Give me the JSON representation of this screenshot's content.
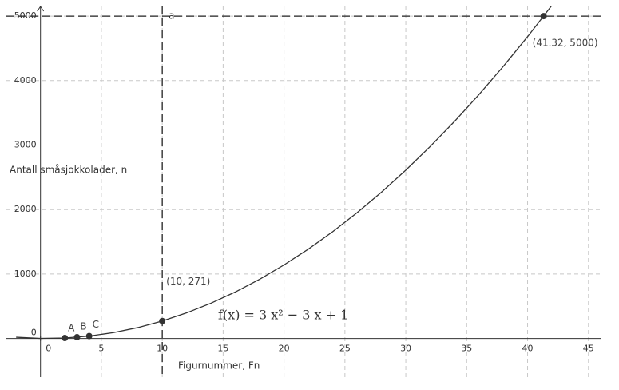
{
  "chart_data": {
    "type": "line",
    "x_label": "Figurnummer,  Fn",
    "y_label": "Antall småsjokkolader, n",
    "formula": "f(x) = 3 x² − 3 x + 1",
    "xlim": [
      -2.8,
      46
    ],
    "ylim": [
      -600,
      5150
    ],
    "xticks": [
      0,
      5,
      10,
      15,
      20,
      25,
      30,
      35,
      40,
      45
    ],
    "yticks": [
      0,
      1000,
      2000,
      3000,
      4000,
      5000
    ],
    "grid": true,
    "x": [
      -2,
      0,
      2,
      4,
      6,
      8,
      10,
      12,
      14,
      16,
      18,
      20,
      22,
      24,
      26,
      28,
      30,
      32,
      34,
      36,
      38,
      40,
      42
    ],
    "series": [
      {
        "color": "#333333",
        "values": [
          19,
          1,
          7,
          37,
          91,
          169,
          271,
          397,
          547,
          721,
          919,
          1141,
          1387,
          1657,
          1951,
          2269,
          2611,
          2977,
          3367,
          3781,
          4219,
          4681,
          5167
        ]
      }
    ],
    "points": [
      {
        "name": "A",
        "x": 2,
        "y": 7
      },
      {
        "name": "B",
        "x": 3,
        "y": 19
      },
      {
        "name": "C",
        "x": 4,
        "y": 37
      },
      {
        "x": 10,
        "y": 271,
        "label": "(10, 271)"
      },
      {
        "x": 41.32,
        "y": 5000,
        "label": "(41.32, 5000)"
      }
    ],
    "vlines": [
      {
        "x": 10,
        "label": "a"
      }
    ],
    "hlines": [
      {
        "y": 5000
      }
    ]
  }
}
